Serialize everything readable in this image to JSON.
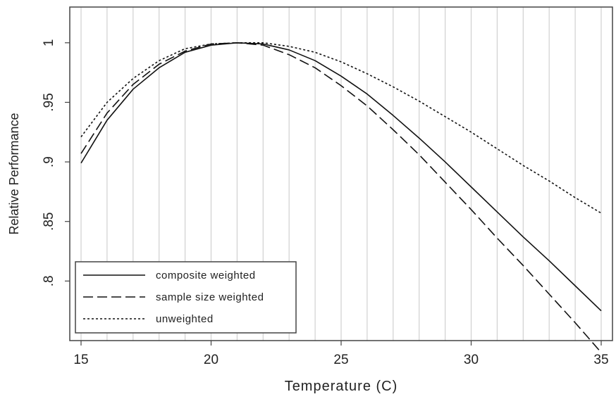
{
  "chart_data": {
    "type": "line",
    "xlabel": "Temperature (C)",
    "ylabel": "Relative Performance",
    "xlim": [
      15,
      35
    ],
    "ylim": [
      0.75,
      1.03
    ],
    "xticks": [
      15,
      20,
      25,
      30,
      35
    ],
    "xtick_labels": [
      "15",
      "20",
      "25",
      "30",
      "35"
    ],
    "yticks": [
      0.8,
      0.85,
      0.9,
      0.95,
      1.0
    ],
    "ytick_labels": [
      ".8",
      ".85",
      ".9",
      ".95",
      "1"
    ],
    "grid": "vertical lines",
    "legend_position": "bottom-left",
    "colors": {
      "line": "#111111",
      "grid": "#d0d0d0",
      "frame": "#444444"
    },
    "series": [
      {
        "name": "composite weighted",
        "style": "solid",
        "x": [
          15,
          16,
          17,
          18,
          19,
          20,
          21,
          22,
          23,
          24,
          25,
          26,
          27,
          28,
          29,
          30,
          31,
          32,
          33,
          34,
          35
        ],
        "y": [
          0.899,
          0.935,
          0.961,
          0.979,
          0.992,
          0.998,
          1.0,
          0.999,
          0.994,
          0.985,
          0.972,
          0.957,
          0.939,
          0.92,
          0.9,
          0.879,
          0.858,
          0.837,
          0.817,
          0.796,
          0.775
        ]
      },
      {
        "name": "sample size weighted",
        "style": "dashed",
        "x": [
          15,
          16,
          17,
          18,
          19,
          20,
          21,
          22,
          23,
          24,
          25,
          26,
          27,
          28,
          29,
          30,
          31,
          32,
          33,
          34,
          35
        ],
        "y": [
          0.907,
          0.941,
          0.965,
          0.982,
          0.993,
          0.999,
          1.0,
          0.998,
          0.99,
          0.979,
          0.964,
          0.947,
          0.927,
          0.906,
          0.883,
          0.86,
          0.836,
          0.813,
          0.789,
          0.765,
          0.74
        ]
      },
      {
        "name": "unweighted",
        "style": "dotted",
        "x": [
          15,
          16,
          17,
          18,
          19,
          20,
          21,
          22,
          23,
          24,
          25,
          26,
          27,
          28,
          29,
          30,
          31,
          32,
          33,
          34,
          35
        ],
        "y": [
          0.921,
          0.95,
          0.97,
          0.985,
          0.995,
          0.999,
          1.0,
          1.0,
          0.997,
          0.992,
          0.984,
          0.974,
          0.963,
          0.951,
          0.938,
          0.925,
          0.911,
          0.897,
          0.884,
          0.87,
          0.857
        ]
      }
    ]
  }
}
